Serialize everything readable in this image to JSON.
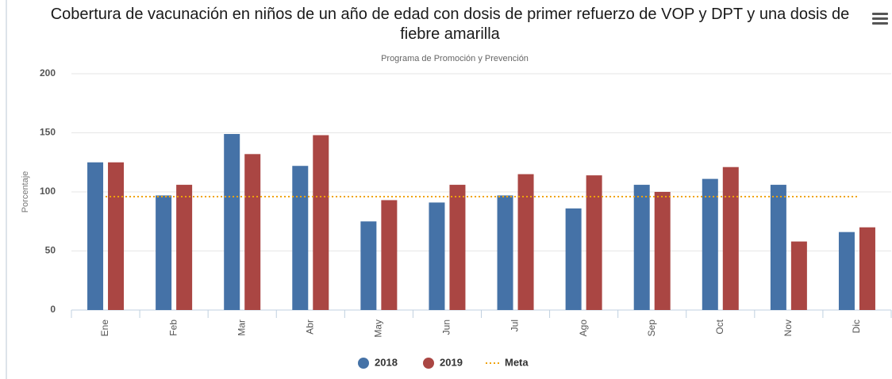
{
  "chart_data": {
    "type": "bar",
    "title": "Cobertura de vacunación en niños de un año de edad con dosis de primer refuerzo de VOP y DPT y una dosis de fiebre amarilla",
    "subtitle": "Programa de Promoción y Prevención",
    "y_axis_label": "Porcentaje",
    "categories": [
      "Ene",
      "Feb",
      "Mar",
      "Abr",
      "May",
      "Jun",
      "Jul",
      "Ago",
      "Sep",
      "Oct",
      "Nov",
      "Dic"
    ],
    "series": [
      {
        "name": "2018",
        "color": "#4572a7",
        "values": [
          125,
          97,
          149,
          122,
          75,
          91,
          97,
          86,
          106,
          111,
          106,
          66
        ]
      },
      {
        "name": "2019",
        "color": "#aa4643",
        "values": [
          125,
          106,
          132,
          148,
          93,
          106,
          115,
          114,
          100,
          121,
          58,
          70
        ]
      },
      {
        "name": "Meta",
        "color": "#f0a30a",
        "type": "line",
        "dashed": true,
        "values": [
          96,
          96,
          96,
          96,
          96,
          96,
          96,
          96,
          96,
          96,
          96,
          96
        ]
      }
    ],
    "ylim": [
      0,
      200
    ],
    "yticks": [
      0,
      50,
      100,
      150,
      200
    ],
    "grid": true,
    "legend": "bottom"
  }
}
